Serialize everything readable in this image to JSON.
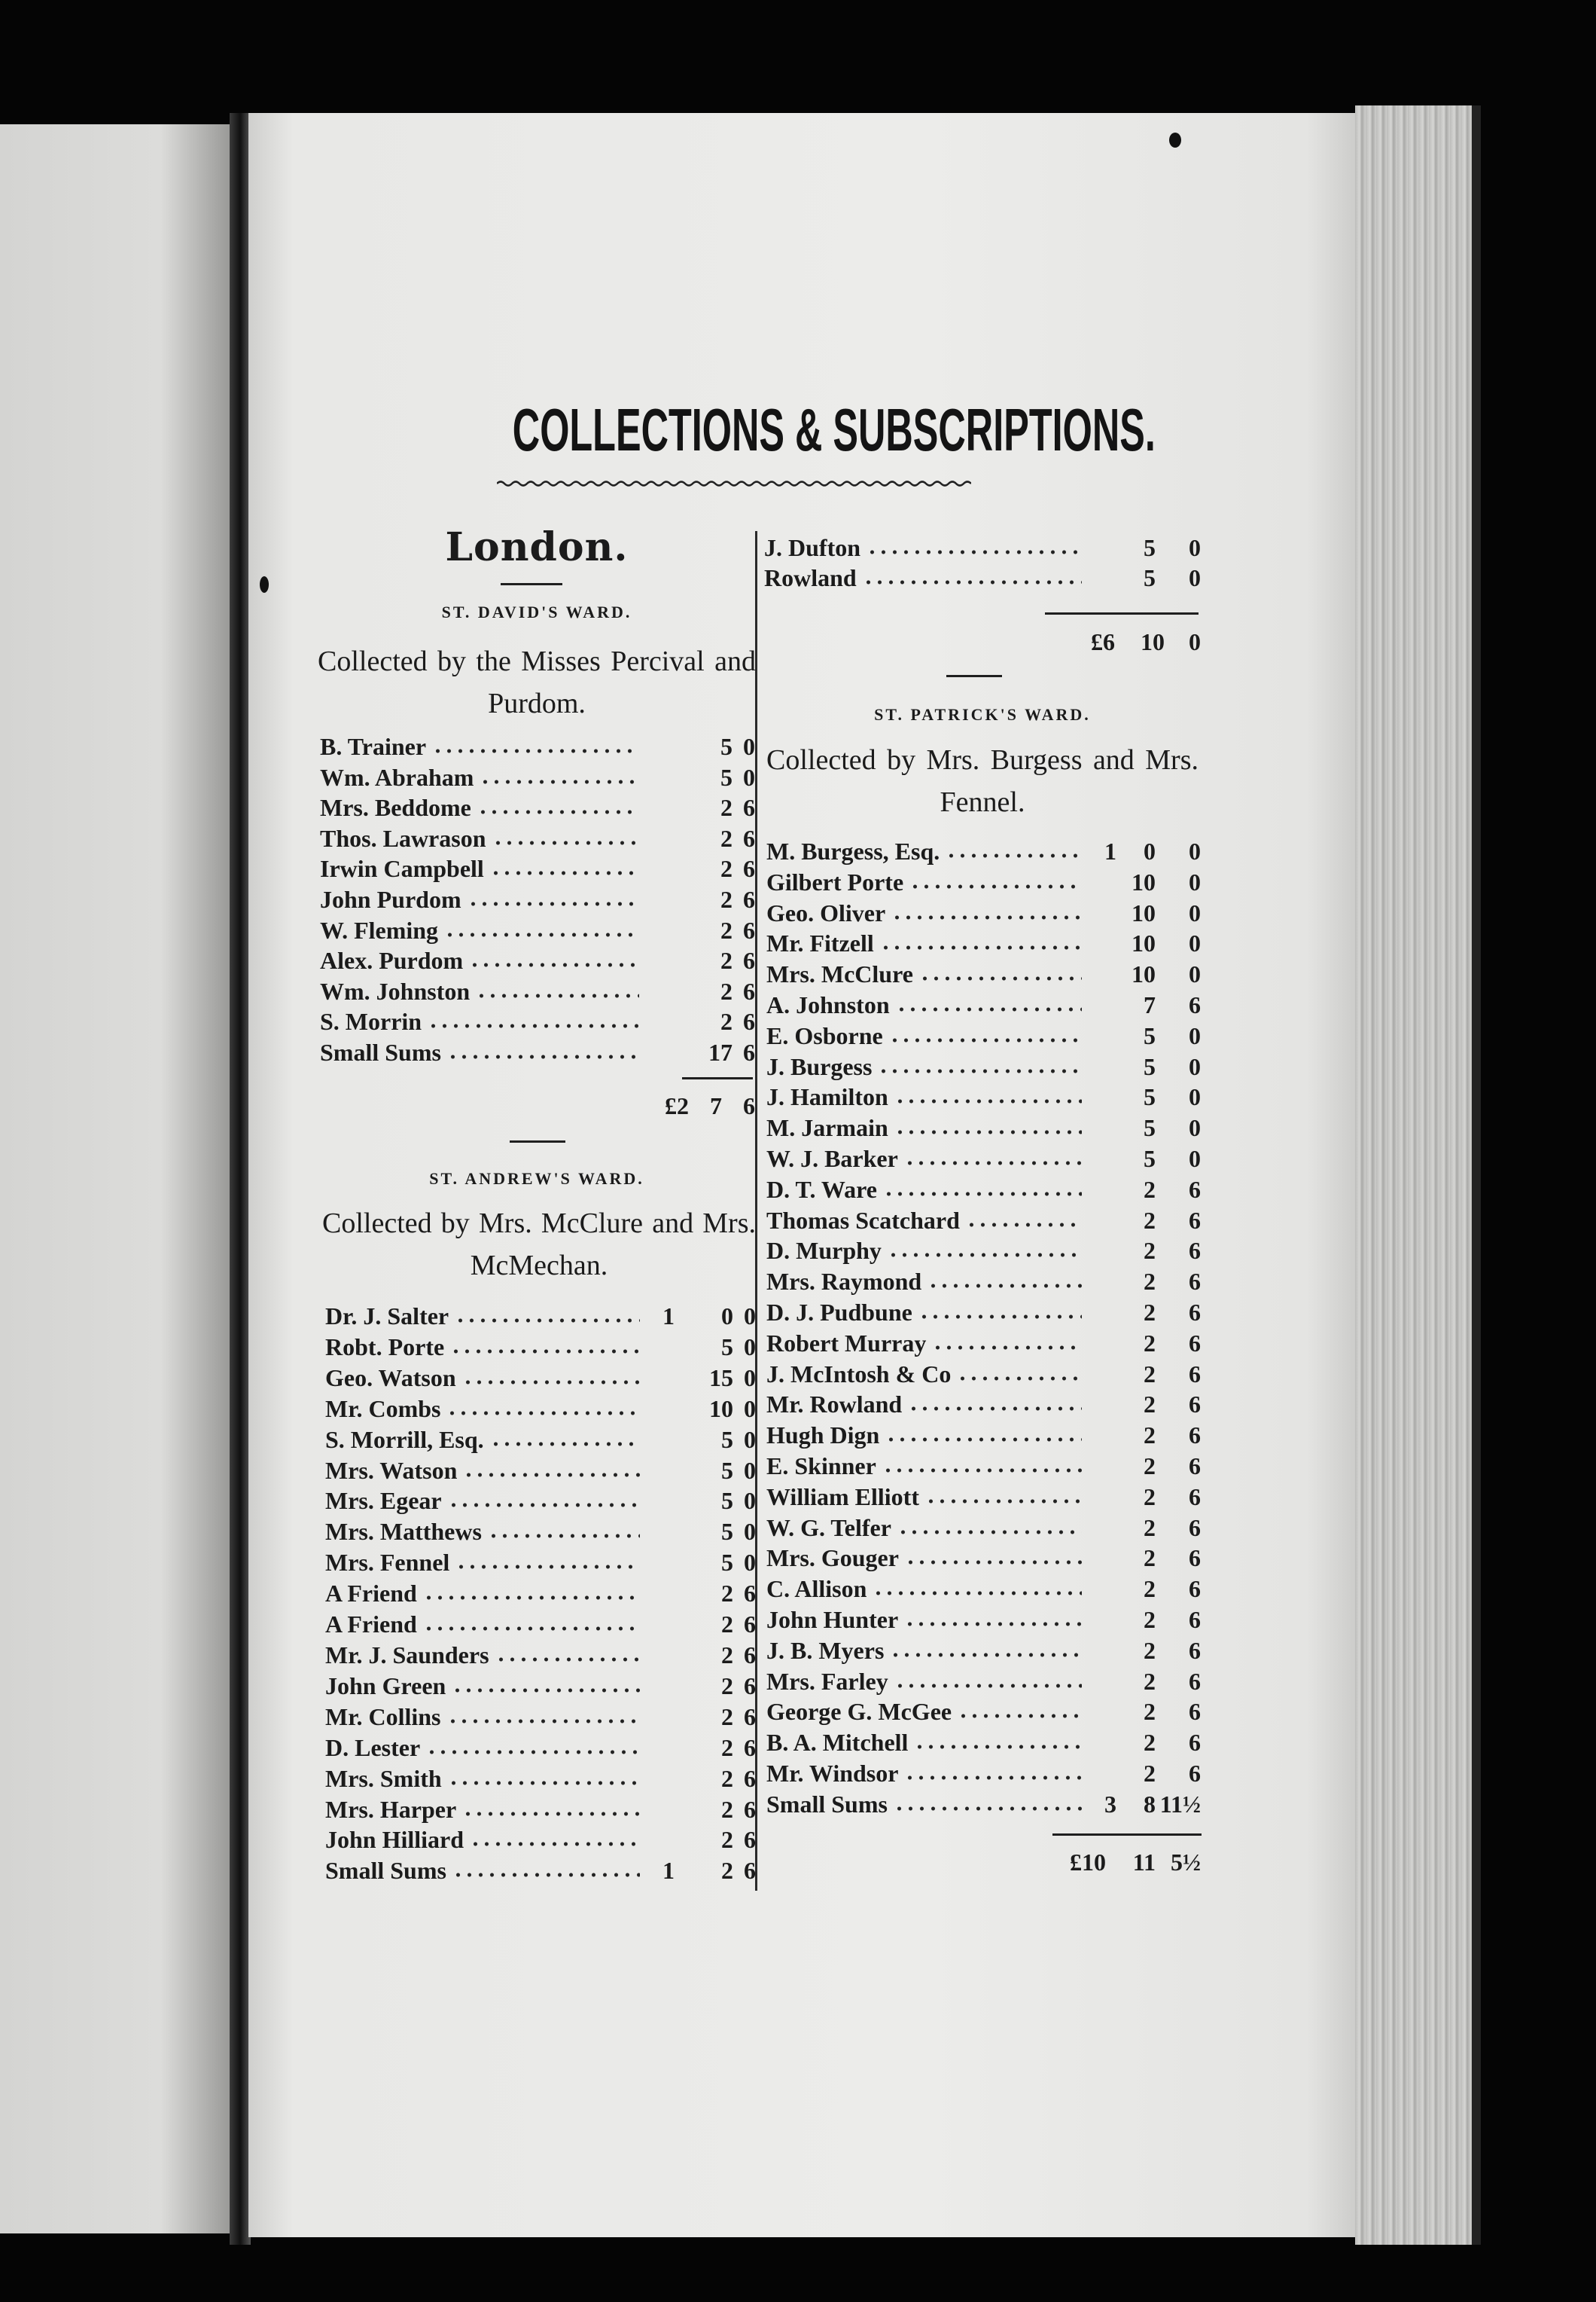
{
  "title": "COLLECTIONS & SUBSCRIPTIONS.",
  "city": "London.",
  "left_column": {
    "sections": [
      {
        "ward": "ST. DAVID'S WARD.",
        "collectors": "Collected by the Misses Percival and Purdom.",
        "entries": [
          {
            "name": "B. Trainer",
            "pounds": "",
            "shillings": "5",
            "pence": "0"
          },
          {
            "name": "Wm. Abraham",
            "pounds": "",
            "shillings": "5",
            "pence": "0"
          },
          {
            "name": "Mrs. Beddome",
            "pounds": "",
            "shillings": "2",
            "pence": "6"
          },
          {
            "name": "Thos. Lawrason",
            "pounds": "",
            "shillings": "2",
            "pence": "6"
          },
          {
            "name": "Irwin Campbell",
            "pounds": "",
            "shillings": "2",
            "pence": "6"
          },
          {
            "name": "John Purdom",
            "pounds": "",
            "shillings": "2",
            "pence": "6"
          },
          {
            "name": "W. Fleming",
            "pounds": "",
            "shillings": "2",
            "pence": "6"
          },
          {
            "name": "Alex. Purdom",
            "pounds": "",
            "shillings": "2",
            "pence": "6"
          },
          {
            "name": "Wm. Johnston",
            "pounds": "",
            "shillings": "2",
            "pence": "6"
          },
          {
            "name": "S. Morrin",
            "pounds": "",
            "shillings": "2",
            "pence": "6"
          },
          {
            "name": "Small Sums",
            "pounds": "",
            "shillings": "17",
            "pence": "6"
          }
        ],
        "total": {
          "pounds": "£2",
          "shillings": "7",
          "pence": "6"
        }
      },
      {
        "ward": "ST. ANDREW'S WARD.",
        "collectors": "Collected by Mrs. McClure and Mrs. McMechan.",
        "entries": [
          {
            "name": "Dr. J. Salter",
            "pounds": "1",
            "shillings": "0",
            "pence": "0"
          },
          {
            "name": "Robt. Porte",
            "pounds": "",
            "shillings": "5",
            "pence": "0"
          },
          {
            "name": "Geo. Watson",
            "pounds": "",
            "shillings": "15",
            "pence": "0"
          },
          {
            "name": "Mr. Combs",
            "pounds": "",
            "shillings": "10",
            "pence": "0"
          },
          {
            "name": "S. Morrill, Esq.",
            "pounds": "",
            "shillings": "5",
            "pence": "0"
          },
          {
            "name": "Mrs. Watson",
            "pounds": "",
            "shillings": "5",
            "pence": "0"
          },
          {
            "name": "Mrs. Egear",
            "pounds": "",
            "shillings": "5",
            "pence": "0"
          },
          {
            "name": "Mrs. Matthews",
            "pounds": "",
            "shillings": "5",
            "pence": "0"
          },
          {
            "name": "Mrs. Fennel",
            "pounds": "",
            "shillings": "5",
            "pence": "0"
          },
          {
            "name": "A Friend",
            "pounds": "",
            "shillings": "2",
            "pence": "6"
          },
          {
            "name": "A Friend",
            "pounds": "",
            "shillings": "2",
            "pence": "6"
          },
          {
            "name": "Mr. J. Saunders",
            "pounds": "",
            "shillings": "2",
            "pence": "6"
          },
          {
            "name": "John Green",
            "pounds": "",
            "shillings": "2",
            "pence": "6"
          },
          {
            "name": "Mr. Collins",
            "pounds": "",
            "shillings": "2",
            "pence": "6"
          },
          {
            "name": "D. Lester",
            "pounds": "",
            "shillings": "2",
            "pence": "6"
          },
          {
            "name": "Mrs. Smith",
            "pounds": "",
            "shillings": "2",
            "pence": "6"
          },
          {
            "name": "Mrs. Harper",
            "pounds": "",
            "shillings": "2",
            "pence": "6"
          },
          {
            "name": "John Hilliard",
            "pounds": "",
            "shillings": "2",
            "pence": "6"
          },
          {
            "name": "Small Sums",
            "pounds": "1",
            "shillings": "2",
            "pence": "6"
          }
        ]
      }
    ]
  },
  "right_column": {
    "continued": {
      "entries": [
        {
          "name": "J. Dufton",
          "pounds": "",
          "shillings": "5",
          "pence": "0"
        },
        {
          "name": "Rowland",
          "pounds": "",
          "shillings": "5",
          "pence": "0"
        }
      ],
      "total": {
        "pounds": "£6",
        "shillings": "10",
        "pence": "0"
      }
    },
    "sections": [
      {
        "ward": "ST. PATRICK'S WARD.",
        "collectors": "Collected by Mrs. Burgess and Mrs. Fennel.",
        "entries": [
          {
            "name": "M. Burgess, Esq.",
            "pounds": "1",
            "shillings": "0",
            "pence": "0"
          },
          {
            "name": "Gilbert Porte",
            "pounds": "",
            "shillings": "10",
            "pence": "0"
          },
          {
            "name": "Geo. Oliver",
            "pounds": "",
            "shillings": "10",
            "pence": "0"
          },
          {
            "name": "Mr. Fitzell",
            "pounds": "",
            "shillings": "10",
            "pence": "0"
          },
          {
            "name": "Mrs. McClure",
            "pounds": "",
            "shillings": "10",
            "pence": "0"
          },
          {
            "name": "A. Johnston",
            "pounds": "",
            "shillings": "7",
            "pence": "6"
          },
          {
            "name": "E. Osborne",
            "pounds": "",
            "shillings": "5",
            "pence": "0"
          },
          {
            "name": "J. Burgess",
            "pounds": "",
            "shillings": "5",
            "pence": "0"
          },
          {
            "name": "J. Hamilton",
            "pounds": "",
            "shillings": "5",
            "pence": "0"
          },
          {
            "name": "M. Jarmain",
            "pounds": "",
            "shillings": "5",
            "pence": "0"
          },
          {
            "name": "W. J. Barker",
            "pounds": "",
            "shillings": "5",
            "pence": "0"
          },
          {
            "name": "D. T. Ware",
            "pounds": "",
            "shillings": "2",
            "pence": "6"
          },
          {
            "name": "Thomas Scatchard",
            "pounds": "",
            "shillings": "2",
            "pence": "6"
          },
          {
            "name": "D. Murphy",
            "pounds": "",
            "shillings": "2",
            "pence": "6"
          },
          {
            "name": "Mrs. Raymond",
            "pounds": "",
            "shillings": "2",
            "pence": "6"
          },
          {
            "name": "D. J. Pudbune",
            "pounds": "",
            "shillings": "2",
            "pence": "6"
          },
          {
            "name": "Robert Murray",
            "pounds": "",
            "shillings": "2",
            "pence": "6"
          },
          {
            "name": "J. McIntosh & Co",
            "pounds": "",
            "shillings": "2",
            "pence": "6"
          },
          {
            "name": "Mr. Rowland",
            "pounds": "",
            "shillings": "2",
            "pence": "6"
          },
          {
            "name": "Hugh Dign",
            "pounds": "",
            "shillings": "2",
            "pence": "6"
          },
          {
            "name": "E. Skinner",
            "pounds": "",
            "shillings": "2",
            "pence": "6"
          },
          {
            "name": "William Elliott",
            "pounds": "",
            "shillings": "2",
            "pence": "6"
          },
          {
            "name": "W. G. Telfer",
            "pounds": "",
            "shillings": "2",
            "pence": "6"
          },
          {
            "name": "Mrs. Gouger",
            "pounds": "",
            "shillings": "2",
            "pence": "6"
          },
          {
            "name": "C. Allison",
            "pounds": "",
            "shillings": "2",
            "pence": "6"
          },
          {
            "name": "John Hunter",
            "pounds": "",
            "shillings": "2",
            "pence": "6"
          },
          {
            "name": "J. B. Myers",
            "pounds": "",
            "shillings": "2",
            "pence": "6"
          },
          {
            "name": "Mrs. Farley",
            "pounds": "",
            "shillings": "2",
            "pence": "6"
          },
          {
            "name": "George G. McGee",
            "pounds": "",
            "shillings": "2",
            "pence": "6"
          },
          {
            "name": "B. A. Mitchell",
            "pounds": "",
            "shillings": "2",
            "pence": "6"
          },
          {
            "name": "Mr. Windsor",
            "pounds": "",
            "shillings": "2",
            "pence": "6"
          },
          {
            "name": "Small Sums",
            "pounds": "3",
            "shillings": "8",
            "pence": "11½"
          }
        ],
        "total": {
          "pounds": "£10",
          "shillings": "11",
          "pence": "5½"
        }
      }
    ]
  }
}
